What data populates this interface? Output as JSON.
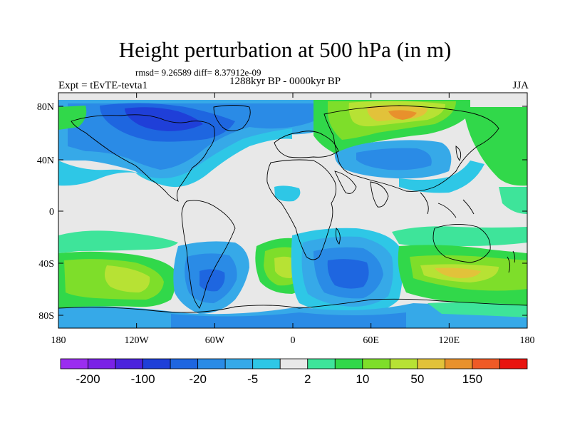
{
  "title": "Height perturbation at 500 hPa (in m)",
  "stats": "rmsd= 9.26589 diff= 8.37912e-09",
  "period": "1288kyr BP - 0000kyr BP",
  "expt": "Expt = tEvTE-tevta1",
  "season": "JJA",
  "axes": {
    "x_ticks": [
      "180",
      "120W",
      "60W",
      "0",
      "60E",
      "120E",
      "180"
    ],
    "y_ticks": [
      "80N",
      "40N",
      "0",
      "40S",
      "80S"
    ]
  },
  "colorbar": {
    "colors": [
      "#9b2df0",
      "#7a21e6",
      "#4b23dd",
      "#1f3fd8",
      "#1e66e0",
      "#2a8be6",
      "#36a9e8",
      "#2ec7e6",
      "#e8e8e8",
      "#3ee49a",
      "#31d84a",
      "#7ede2a",
      "#b7e234",
      "#e2c23a",
      "#e8912c",
      "#ef5a26",
      "#e8140f"
    ],
    "labels": [
      "-200",
      "-100",
      "-20",
      "-5",
      "2",
      "10",
      "50",
      "150"
    ]
  }
}
